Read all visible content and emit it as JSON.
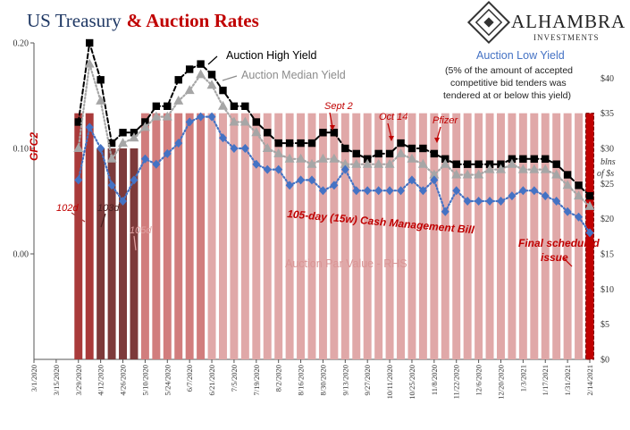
{
  "title": {
    "part1": "US Treasury",
    "part2": "& Auction Rates"
  },
  "logo": {
    "name": "ALHAMBRA",
    "sub": "INVESTMENTS"
  },
  "colors": {
    "high": "#000000",
    "median": "#a6a6a6",
    "low": "#4472c4",
    "bar_light": "#e0a8a8",
    "bar_mid": "#d17d7d",
    "bar_102": "#a93a3a",
    "bar_103": "#7d3a3a",
    "bar_final": "#c00000",
    "red_text": "#c00000",
    "title_blue": "#1f3864"
  },
  "chart_data": {
    "type": "line",
    "title": "US Treasury & Auction Rates",
    "x": [
      "3/1/2020",
      "3/8/2020",
      "3/15/2020",
      "3/22/2020",
      "3/29/2020",
      "4/5/2020",
      "4/12/2020",
      "4/19/2020",
      "4/26/2020",
      "5/3/2020",
      "5/10/2020",
      "5/17/2020",
      "5/24/2020",
      "5/31/2020",
      "6/7/2020",
      "6/14/2020",
      "6/21/2020",
      "6/28/2020",
      "7/5/2020",
      "7/12/2020",
      "7/19/2020",
      "7/26/2020",
      "8/2/2020",
      "8/9/2020",
      "8/16/2020",
      "8/23/2020",
      "8/30/2020",
      "9/6/2020",
      "9/13/2020",
      "9/20/2020",
      "9/27/2020",
      "10/4/2020",
      "10/11/2020",
      "10/18/2020",
      "10/25/2020",
      "11/1/2020",
      "11/8/2020",
      "11/15/2020",
      "11/22/2020",
      "11/29/2020",
      "12/6/2020",
      "12/13/2020",
      "12/20/2020",
      "12/27/2020",
      "1/3/2021",
      "1/10/2021",
      "1/17/2021",
      "1/24/2021",
      "1/31/2021",
      "2/7/2021",
      "2/14/2021"
    ],
    "x_tick_labels": [
      "3/1/2020",
      "3/15/2020",
      "3/29/2020",
      "4/12/2020",
      "4/26/2020",
      "5/10/2020",
      "5/24/2020",
      "6/7/2020",
      "6/21/2020",
      "7/5/2020",
      "7/19/2020",
      "8/2/2020",
      "8/16/2020",
      "8/30/2020",
      "9/13/2020",
      "9/27/2020",
      "10/11/2020",
      "10/25/2020",
      "11/8/2020",
      "11/22/2020",
      "12/6/2020",
      "12/20/2020",
      "1/3/2021",
      "1/17/2021",
      "1/31/2021",
      "2/14/2021"
    ],
    "y_left": {
      "ticks": [
        "0.20",
        "0.10",
        "0.00"
      ],
      "ylim": [
        -0.1,
        0.2
      ]
    },
    "y_right": {
      "label_line1": "blns",
      "label_line2": "of $s",
      "ticks": [
        "$40",
        "$35",
        "$30",
        "$25",
        "$20",
        "$15",
        "$10",
        "$5",
        "$0"
      ],
      "ylim": [
        0,
        45
      ]
    },
    "series": [
      {
        "name": "Auction High Yield",
        "marker": "square",
        "color": "#000000",
        "style": "dashed",
        "values": [
          null,
          null,
          null,
          null,
          0.125,
          0.2,
          0.165,
          0.105,
          0.115,
          0.115,
          0.125,
          0.14,
          0.14,
          0.165,
          0.175,
          0.18,
          0.17,
          0.155,
          0.14,
          0.14,
          0.125,
          0.115,
          0.105,
          0.105,
          0.105,
          0.105,
          0.115,
          0.115,
          0.1,
          0.095,
          0.09,
          0.095,
          0.095,
          0.105,
          0.1,
          0.1,
          0.095,
          0.09,
          0.085,
          0.085,
          0.085,
          0.085,
          0.085,
          0.09,
          0.09,
          0.09,
          0.09,
          0.085,
          0.075,
          0.065,
          0.055
        ]
      },
      {
        "name": "Auction Median Yield",
        "marker": "triangle",
        "color": "#a6a6a6",
        "style": "dotted",
        "values": [
          null,
          null,
          null,
          null,
          0.1,
          0.18,
          0.145,
          0.09,
          0.105,
          0.11,
          0.12,
          0.13,
          0.13,
          0.145,
          0.155,
          0.17,
          0.16,
          0.14,
          0.125,
          0.125,
          0.115,
          0.1,
          0.095,
          0.09,
          0.09,
          0.085,
          0.09,
          0.09,
          0.085,
          0.085,
          0.085,
          0.085,
          0.085,
          0.095,
          0.09,
          0.085,
          0.075,
          0.085,
          0.075,
          0.075,
          0.075,
          0.08,
          0.08,
          0.085,
          0.08,
          0.08,
          0.08,
          0.075,
          0.065,
          0.055,
          0.045
        ]
      },
      {
        "name": "Auction Low Yield",
        "marker": "diamond",
        "color": "#4472c4",
        "style": "dotted",
        "values": [
          null,
          null,
          null,
          null,
          0.07,
          0.12,
          0.1,
          0.065,
          0.05,
          0.07,
          0.09,
          0.085,
          0.095,
          0.105,
          0.125,
          0.13,
          0.13,
          0.11,
          0.1,
          0.1,
          0.085,
          0.08,
          0.08,
          0.065,
          0.07,
          0.07,
          0.06,
          0.065,
          0.08,
          0.06,
          0.06,
          0.06,
          0.06,
          0.06,
          0.07,
          0.06,
          0.07,
          0.04,
          0.06,
          0.05,
          0.05,
          0.05,
          0.05,
          0.055,
          0.06,
          0.06,
          0.055,
          0.05,
          0.04,
          0.035,
          0.02
        ]
      }
    ],
    "bars": {
      "name": "Auction Par Value - RHS",
      "unit": "blns of $s",
      "values": [
        null,
        null,
        null,
        null,
        35,
        35,
        30,
        30,
        30,
        30,
        35,
        35,
        35,
        35,
        35,
        35,
        35,
        35,
        35,
        35,
        35,
        35,
        35,
        35,
        35,
        35,
        35,
        35,
        35,
        35,
        35,
        35,
        35,
        35,
        35,
        35,
        35,
        35,
        35,
        35,
        35,
        35,
        35,
        35,
        35,
        35,
        35,
        35,
        35,
        35,
        35
      ],
      "note": "values taken from printed labels only where shown"
    },
    "annotations": [
      {
        "text": "GFC2"
      },
      {
        "text": "Sept 2"
      },
      {
        "text": "Oct 14"
      },
      {
        "text": "Pfizer"
      },
      {
        "text": "102d"
      },
      {
        "text": "103d"
      },
      {
        "text": "105d"
      },
      {
        "text": "105-day (15w) Cash Management Bill"
      },
      {
        "text": "Final scheduled issue"
      },
      {
        "text": "Auction High Yield"
      },
      {
        "text": "Auction Median Yield"
      },
      {
        "text": "Auction Low Yield"
      },
      {
        "text": "(5% of the amount of accepted competitive bid tenders was tendered at or below this yield)"
      },
      {
        "text": "Auction Par Value - RHS"
      }
    ]
  },
  "text": {
    "gfc2": "GFC2",
    "sept2": "Sept 2",
    "oct14": "Oct 14",
    "pfizer": "Pfizer",
    "d102": "102d",
    "d103": "103d",
    "d105": "105d",
    "cmb": "105-day (15w) Cash Management Bill",
    "final1": "Final scheduled",
    "final2": "issue",
    "high": "Auction High Yield",
    "median": "Auction Median Yield",
    "low": "Auction Low Yield",
    "note1": "(5% of the amount of accepted",
    "note2": "competitive bid tenders was",
    "note3": "tendered at or below this yield)",
    "bars_label": "Auction Par Value - RHS",
    "blns": "blns",
    "ofs": "of $s"
  }
}
